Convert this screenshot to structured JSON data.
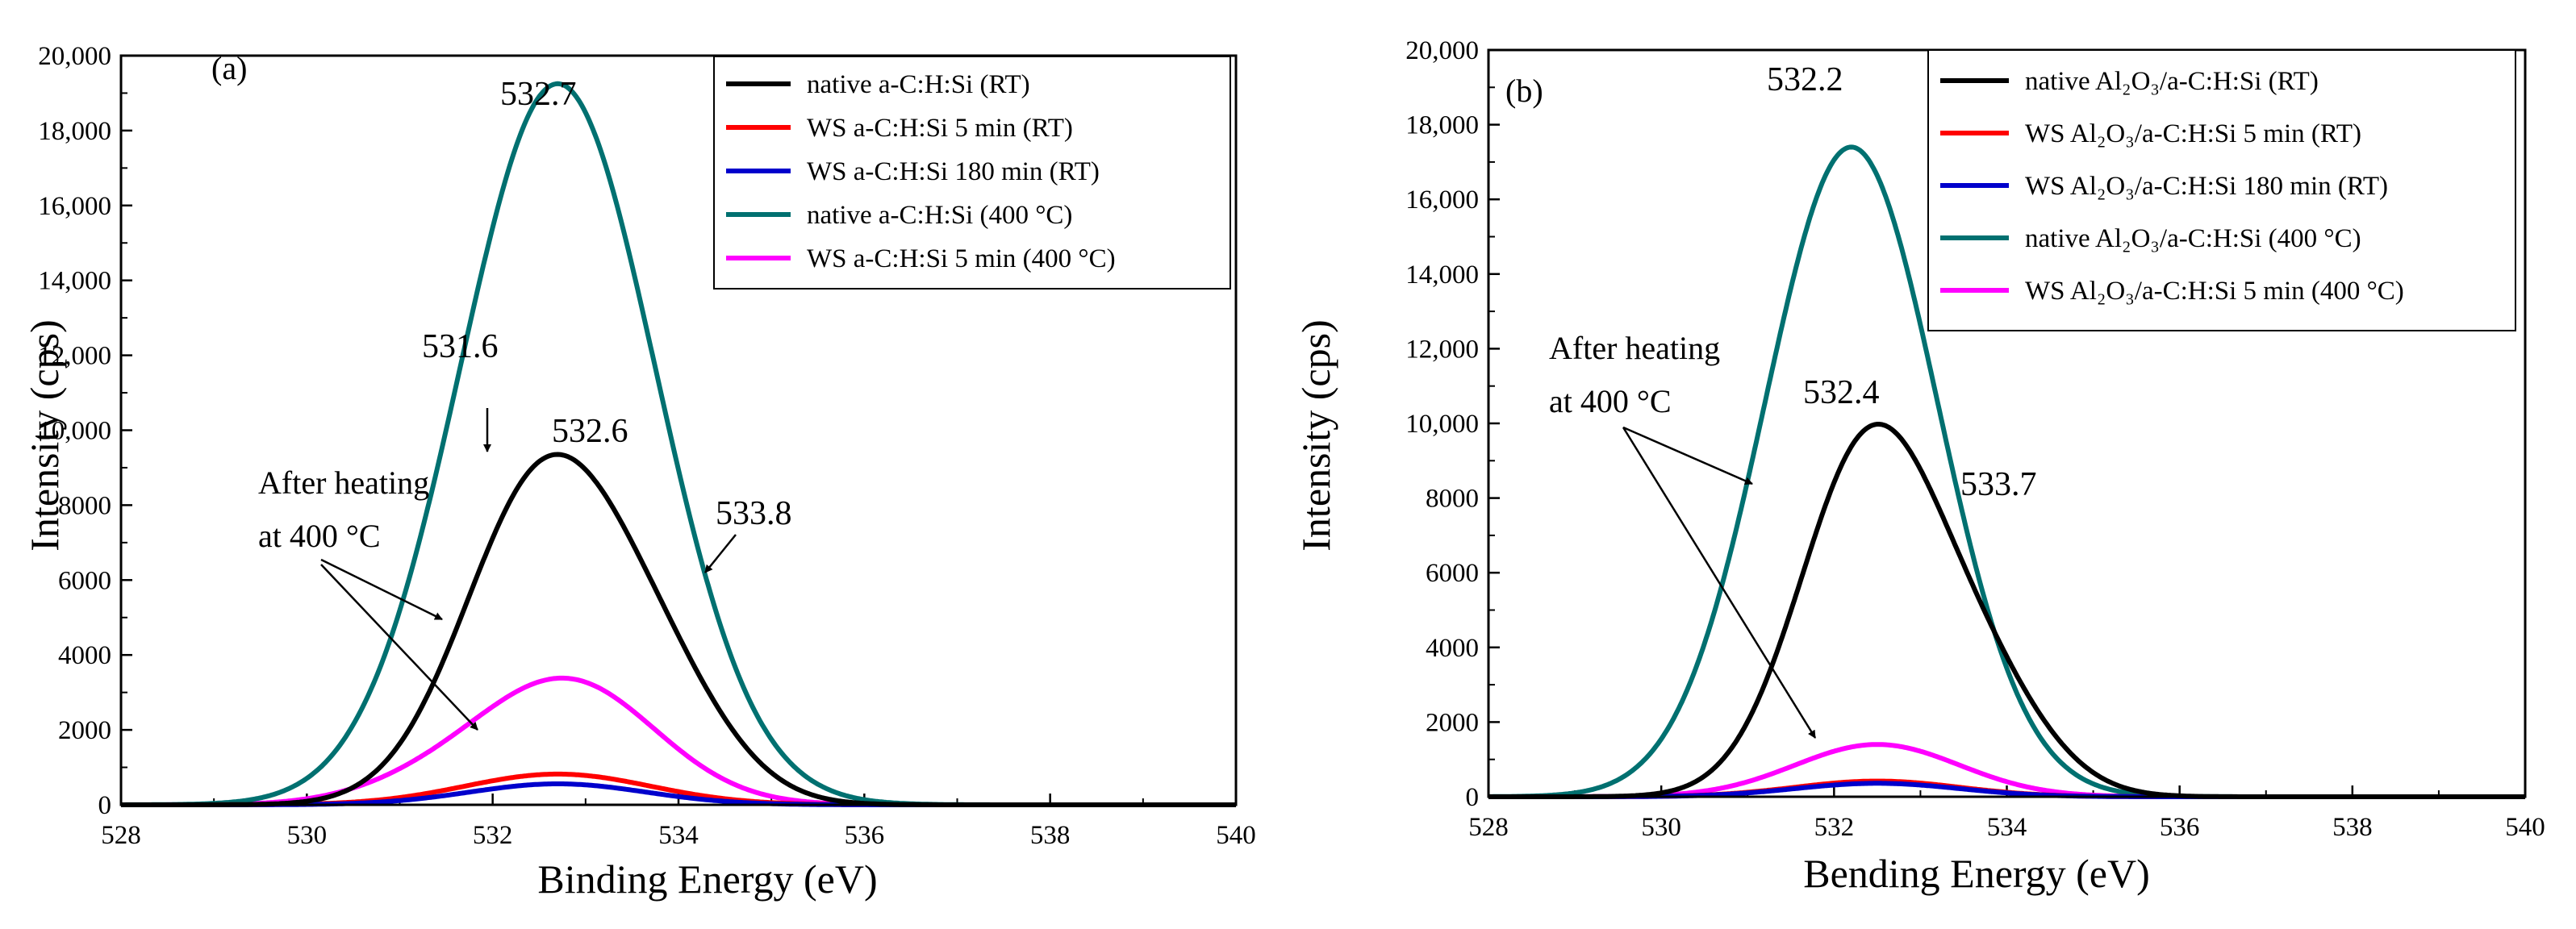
{
  "chart_data": [
    {
      "type": "line",
      "panel_label": "(a)",
      "xlabel": "Binding Energy (eV)",
      "ylabel": "Intensity (cps)",
      "xlim": [
        528,
        540
      ],
      "ylim": [
        0,
        20000
      ],
      "xticks": [
        528,
        530,
        532,
        534,
        536,
        538,
        540
      ],
      "x_tick_labels": [
        "528",
        "530",
        "532",
        "534",
        "536",
        "538",
        "540"
      ],
      "yticks": [
        0,
        2000,
        4000,
        6000,
        8000,
        10000,
        12000,
        14000,
        16000,
        18000,
        20000
      ],
      "y_tick_labels": [
        "0",
        "2000",
        "4000",
        "6000",
        "8000",
        "10,000",
        "12,000",
        "14,000",
        "16,000",
        "18,000",
        "20,000"
      ],
      "legend_position": "top-right",
      "series": [
        {
          "name": "native a-C:H:Si  (RT)",
          "color": "#000000",
          "components": [
            {
              "center": 532.55,
              "amp": 8600,
              "sigma": 0.85
            },
            {
              "center": 533.8,
              "amp": 2600,
              "sigma": 0.75
            }
          ]
        },
        {
          "name": "WS a-C:H:Si  5 min (RT)",
          "color": "#ff0000",
          "components": [
            {
              "center": 532.7,
              "amp": 820,
              "sigma": 1.0
            }
          ]
        },
        {
          "name": "WS a-C:H:Si  180 min (RT)",
          "color": "#0000cc",
          "components": [
            {
              "center": 532.7,
              "amp": 560,
              "sigma": 0.95
            }
          ]
        },
        {
          "name": "native a-C:H:Si  (400 °C)",
          "color": "#007070",
          "components": [
            {
              "center": 532.7,
              "amp": 19250,
              "sigma": 1.05
            }
          ]
        },
        {
          "name": "WS a-C:H:Si  5 min (400 °C)",
          "color": "#ff00ff",
          "components": [
            {
              "center": 532.8,
              "amp": 3300,
              "sigma": 0.95
            },
            {
              "center": 531.3,
              "amp": 450,
              "sigma": 0.8
            }
          ]
        }
      ],
      "peak_labels": [
        {
          "text": "532.7",
          "x": 532.7,
          "y": 19250
        },
        {
          "text": "532.6",
          "x": 532.6,
          "y": 9200
        },
        {
          "text": "531.6",
          "x": 531.6,
          "y": 11500
        },
        {
          "text": "533.8",
          "x": 533.8,
          "y": 7400
        }
      ],
      "annotation": {
        "line1": "After heating",
        "line2": "at 400 °C"
      }
    },
    {
      "type": "line",
      "panel_label": "(b)",
      "xlabel": "Bending Energy (eV)",
      "ylabel": "Intensity (cps)",
      "xlim": [
        528,
        540
      ],
      "ylim": [
        0,
        20000
      ],
      "xticks": [
        528,
        530,
        532,
        534,
        536,
        538,
        540
      ],
      "x_tick_labels": [
        "528",
        "530",
        "532",
        "534",
        "536",
        "538",
        "540"
      ],
      "yticks": [
        0,
        2000,
        4000,
        6000,
        8000,
        10000,
        12000,
        14000,
        16000,
        18000,
        20000
      ],
      "y_tick_labels": [
        "0",
        "2000",
        "4000",
        "6000",
        "8000",
        "10,000",
        "12,000",
        "14,000",
        "16,000",
        "18,000",
        "20,000"
      ],
      "legend_position": "top-right",
      "series": [
        {
          "name": "native Al₂O₃/a-C:H:Si  (RT)",
          "color": "#000000",
          "components": [
            {
              "center": 532.4,
              "amp": 9300,
              "sigma": 0.8
            },
            {
              "center": 533.7,
              "amp": 2700,
              "sigma": 0.75
            }
          ]
        },
        {
          "name": "WS Al₂O₃/a-C:H:Si  5 min (RT)",
          "color": "#ff0000",
          "components": [
            {
              "center": 532.5,
              "amp": 420,
              "sigma": 0.95
            }
          ]
        },
        {
          "name": "WS Al₂O₃/a-C:H:Si  180 min (RT)",
          "color": "#0000cc",
          "components": [
            {
              "center": 532.5,
              "amp": 360,
              "sigma": 0.95
            }
          ]
        },
        {
          "name": "native Al₂O₃/a-C:H:Si  (400 °C)",
          "color": "#007070",
          "components": [
            {
              "center": 532.2,
              "amp": 17400,
              "sigma": 1.0
            }
          ]
        },
        {
          "name": "WS Al₂O₃/a-C:H:Si  5 min (400 °C)",
          "color": "#ff00ff",
          "components": [
            {
              "center": 532.5,
              "amp": 1400,
              "sigma": 0.95
            }
          ]
        }
      ],
      "peak_labels": [
        {
          "text": "532.2",
          "x": 532.2,
          "y": 17400
        },
        {
          "text": "532.4",
          "x": 532.4,
          "y": 9900
        },
        {
          "text": "533.7",
          "x": 533.7,
          "y": 7200
        }
      ],
      "annotation": {
        "line1": "After heating",
        "line2": "at 400 °C"
      }
    }
  ]
}
